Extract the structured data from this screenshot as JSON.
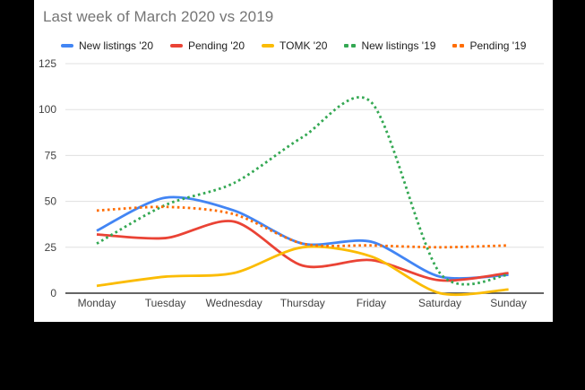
{
  "chart_data": {
    "type": "line",
    "title": "Last week of March 2020 vs 2019",
    "categories": [
      "Monday",
      "Tuesday",
      "Wednesday",
      "Thursday",
      "Friday",
      "Saturday",
      "Sunday"
    ],
    "series": [
      {
        "name": "New listings '20",
        "color": "#4285F4",
        "style": "solid",
        "values": [
          34,
          52,
          45,
          27,
          28,
          9,
          10
        ]
      },
      {
        "name": "Pending '20",
        "color": "#EA4335",
        "style": "solid",
        "values": [
          32,
          30,
          39,
          15,
          18,
          7,
          11
        ]
      },
      {
        "name": "TOMK '20",
        "color": "#FBBC04",
        "style": "solid",
        "values": [
          4,
          9,
          11,
          25,
          20,
          0,
          2
        ]
      },
      {
        "name": "New listings '19",
        "color": "#34A853",
        "style": "dotted",
        "values": [
          27,
          48,
          60,
          85,
          104,
          11,
          10
        ]
      },
      {
        "name": "Pending '19",
        "color": "#FF6D01",
        "style": "dotted",
        "values": [
          45,
          47,
          43,
          27,
          26,
          25,
          26
        ]
      }
    ],
    "ylim": [
      0,
      125
    ],
    "yticks": [
      0,
      25,
      50,
      75,
      100,
      125
    ],
    "grid": true,
    "legend_position": "top",
    "line_shape": "smooth"
  },
  "colors": {
    "page_background": "#000000",
    "card_background": "#ffffff",
    "gridline": "#e0e0e0",
    "axis_line": "#333333",
    "tick_label": "#424242",
    "title_text": "#757575",
    "legend_text": "#212121"
  }
}
